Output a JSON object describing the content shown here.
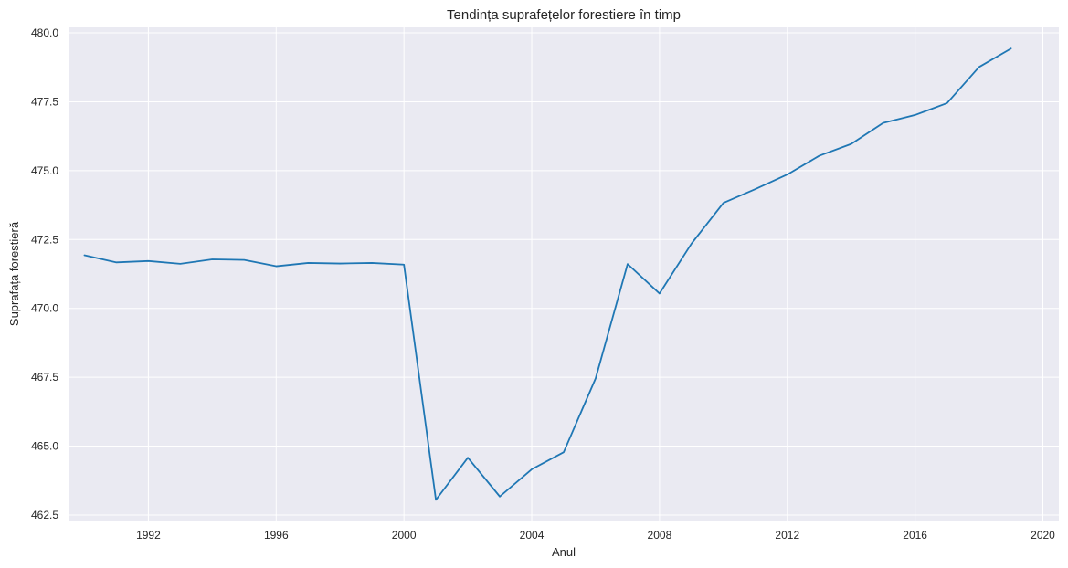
{
  "chart_data": {
    "type": "line",
    "title": "Tendința suprafețelor forestiere în timp",
    "xlabel": "Anul",
    "ylabel": "Suprafața forestieră",
    "xlim": [
      1989.5,
      2020.5
    ],
    "ylim": [
      462.3,
      480.2
    ],
    "x_ticks": [
      1992,
      1996,
      2000,
      2004,
      2008,
      2012,
      2016,
      2020
    ],
    "x_tick_labels": [
      "1992",
      "1996",
      "2000",
      "2004",
      "2008",
      "2012",
      "2016",
      "2020"
    ],
    "y_ticks": [
      462.5,
      465.0,
      467.5,
      470.0,
      472.5,
      475.0,
      477.5,
      480.0
    ],
    "y_tick_labels": [
      "462.5",
      "465.0",
      "467.5",
      "470.0",
      "472.5",
      "475.0",
      "477.5",
      "480.0"
    ],
    "grid": true,
    "legend": false,
    "colors": {
      "background": "#eaeaf2",
      "grid": "#ffffff",
      "line": "#1f77b4"
    },
    "series": [
      {
        "x": [
          1990,
          1991,
          1992,
          1993,
          1994,
          1995,
          1996,
          1997,
          1998,
          1999,
          2000,
          2001,
          2002,
          2003,
          2004,
          2005,
          2006,
          2007,
          2008,
          2009,
          2010,
          2011,
          2012,
          2013,
          2014,
          2015,
          2016,
          2017,
          2018,
          2019
        ],
        "values": [
          471.93,
          471.67,
          471.72,
          471.62,
          471.78,
          471.76,
          471.53,
          471.65,
          471.63,
          471.65,
          471.59,
          463.05,
          464.58,
          463.17,
          464.16,
          464.78,
          467.46,
          471.61,
          470.54,
          472.35,
          473.83,
          474.33,
          474.86,
          475.54,
          475.97,
          476.73,
          477.02,
          477.45,
          478.76,
          479.43
        ]
      }
    ]
  }
}
